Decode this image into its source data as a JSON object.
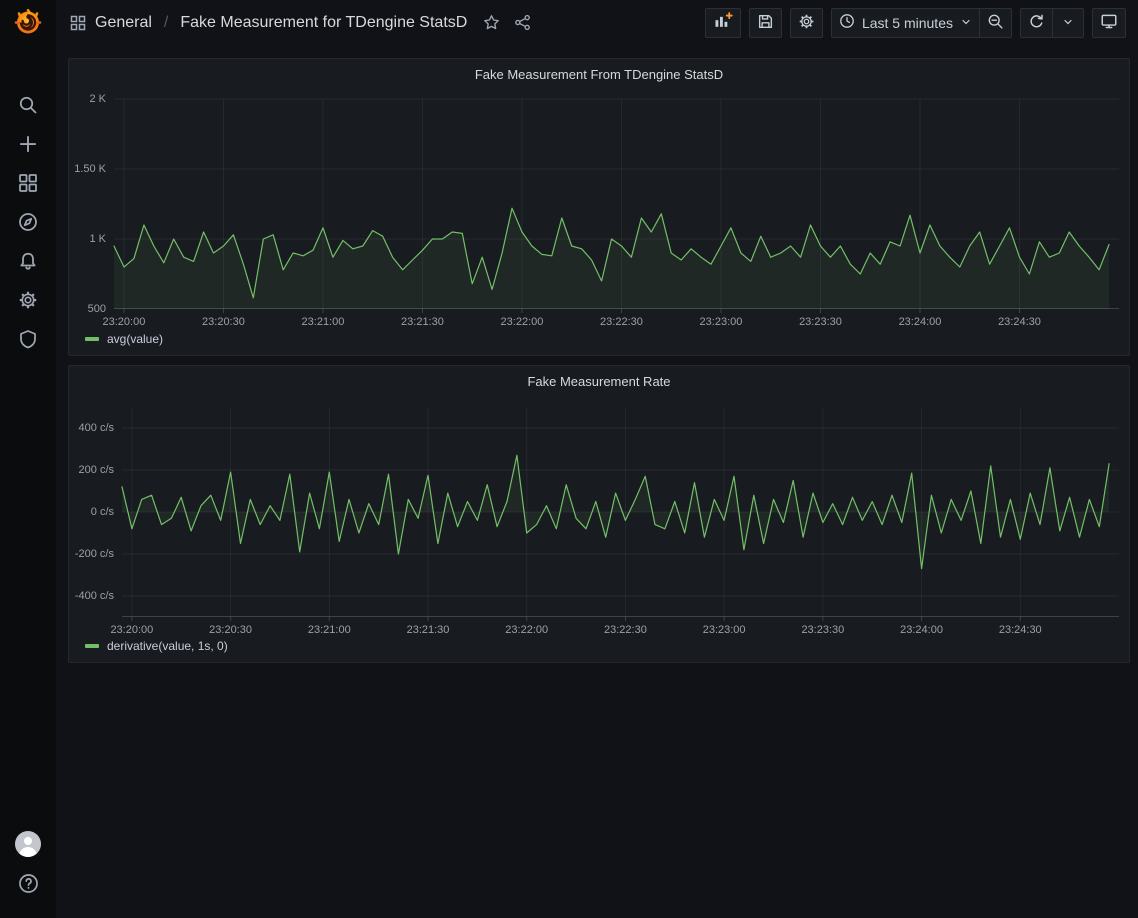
{
  "app": {
    "name": "Grafana"
  },
  "topnav": {
    "breadcrumb": {
      "section": "General",
      "separator": "/",
      "title": "Fake Measurement for TDengine StatsD"
    },
    "icons": [
      "apps-icon",
      "star-icon",
      "share-icon"
    ],
    "toolbar": {
      "add_panel_icon": "bar-chart-plus-icon",
      "save_icon": "save-icon",
      "settings_icon": "gear-icon",
      "time_range_label": "Last 5 minutes",
      "zoom_out_icon": "magnifier-minus-icon",
      "refresh_icon": "refresh-icon",
      "kiosk_icon": "monitor-icon"
    }
  },
  "sidebar": {
    "items": [
      "search",
      "create",
      "dashboards",
      "explore",
      "alerting",
      "configuration",
      "server-admin"
    ],
    "bottom": [
      "user-avatar",
      "help"
    ]
  },
  "colors": {
    "accent_orange": "#ff9830",
    "series_green": "#73BF69",
    "panel_bg": "#181b1f",
    "page_bg": "#111217",
    "sidebar_bg": "#0b0c0e"
  },
  "chart_data": [
    {
      "type": "line",
      "title": "Fake Measurement From TDengine StatsD",
      "xlabel": "time",
      "ylabel": "",
      "legend_position": "bottom-left",
      "grid": true,
      "xlim": [
        0,
        303
      ],
      "ylim": [
        500,
        2000
      ],
      "x_start_s": 0,
      "x_step_s": 3,
      "x_ticks": [
        {
          "s": 3,
          "label": "23:20:00"
        },
        {
          "s": 33,
          "label": "23:20:30"
        },
        {
          "s": 63,
          "label": "23:21:00"
        },
        {
          "s": 93,
          "label": "23:21:30"
        },
        {
          "s": 123,
          "label": "23:22:00"
        },
        {
          "s": 153,
          "label": "23:22:30"
        },
        {
          "s": 183,
          "label": "23:23:00"
        },
        {
          "s": 213,
          "label": "23:23:30"
        },
        {
          "s": 243,
          "label": "23:24:00"
        },
        {
          "s": 273,
          "label": "23:24:30"
        }
      ],
      "y_ticks": [
        {
          "v": 500,
          "label": "500"
        },
        {
          "v": 1000,
          "label": "1 K"
        },
        {
          "v": 1500,
          "label": "1.50 K"
        },
        {
          "v": 2000,
          "label": "2 K"
        }
      ],
      "area_baseline": 500,
      "series": [
        {
          "name": "avg(value)",
          "color": "#73BF69",
          "fill": "rgba(115,191,105,0.085)",
          "values": [
            950,
            800,
            860,
            1100,
            950,
            830,
            1000,
            870,
            840,
            1050,
            900,
            950,
            1030,
            820,
            580,
            1000,
            1030,
            780,
            900,
            880,
            920,
            1080,
            870,
            990,
            930,
            950,
            1060,
            1020,
            870,
            780,
            850,
            920,
            1000,
            1000,
            1050,
            1040,
            680,
            870,
            640,
            900,
            1220,
            1050,
            950,
            890,
            880,
            1150,
            950,
            930,
            850,
            700,
            1000,
            950,
            870,
            1150,
            1050,
            1180,
            900,
            850,
            930,
            870,
            820,
            950,
            1080,
            900,
            840,
            1020,
            870,
            900,
            950,
            870,
            1100,
            950,
            870,
            950,
            820,
            750,
            900,
            820,
            980,
            950,
            1170,
            900,
            1100,
            950,
            870,
            800,
            950,
            1050,
            820,
            950,
            1080,
            870,
            750,
            980,
            870,
            900,
            1050,
            950,
            870,
            780,
            960
          ]
        }
      ]
    },
    {
      "type": "line",
      "title": "Fake Measurement Rate",
      "xlabel": "time",
      "ylabel": "",
      "legend_position": "bottom-left",
      "grid": true,
      "xlim": [
        0,
        303
      ],
      "ylim": [
        -500,
        500
      ],
      "x_start_s": 0,
      "x_step_s": 3,
      "x_ticks": [
        {
          "s": 3,
          "label": "23:20:00"
        },
        {
          "s": 33,
          "label": "23:20:30"
        },
        {
          "s": 63,
          "label": "23:21:00"
        },
        {
          "s": 93,
          "label": "23:21:30"
        },
        {
          "s": 123,
          "label": "23:22:00"
        },
        {
          "s": 153,
          "label": "23:22:30"
        },
        {
          "s": 183,
          "label": "23:23:00"
        },
        {
          "s": 213,
          "label": "23:23:30"
        },
        {
          "s": 243,
          "label": "23:24:00"
        },
        {
          "s": 273,
          "label": "23:24:30"
        }
      ],
      "y_ticks": [
        {
          "v": -400,
          "label": "-400 c/s"
        },
        {
          "v": -200,
          "label": "-200 c/s"
        },
        {
          "v": 0,
          "label": "0 c/s"
        },
        {
          "v": 200,
          "label": "200 c/s"
        },
        {
          "v": 400,
          "label": "400 c/s"
        }
      ],
      "area_baseline": 0,
      "series": [
        {
          "name": "derivative(value, 1s, 0)",
          "color": "#73BF69",
          "fill": "rgba(115,191,105,0.085)",
          "values": [
            120,
            -80,
            60,
            80,
            -60,
            -30,
            70,
            -90,
            30,
            80,
            -40,
            190,
            -150,
            60,
            -60,
            30,
            -40,
            180,
            -190,
            90,
            -80,
            190,
            -140,
            60,
            -100,
            40,
            -60,
            180,
            -200,
            60,
            -30,
            175,
            -150,
            90,
            -70,
            50,
            -40,
            130,
            -70,
            50,
            270,
            -100,
            -60,
            30,
            -80,
            130,
            -30,
            -80,
            50,
            -120,
            90,
            -40,
            60,
            170,
            -60,
            -80,
            50,
            -100,
            140,
            -120,
            60,
            -40,
            170,
            -180,
            80,
            -150,
            60,
            -50,
            150,
            -120,
            90,
            -50,
            40,
            -60,
            70,
            -40,
            50,
            -60,
            80,
            -50,
            185,
            -270,
            80,
            -100,
            60,
            -40,
            100,
            -150,
            220,
            -120,
            60,
            -130,
            90,
            -60,
            210,
            -90,
            70,
            -120,
            60,
            -70,
            230
          ]
        }
      ]
    }
  ]
}
